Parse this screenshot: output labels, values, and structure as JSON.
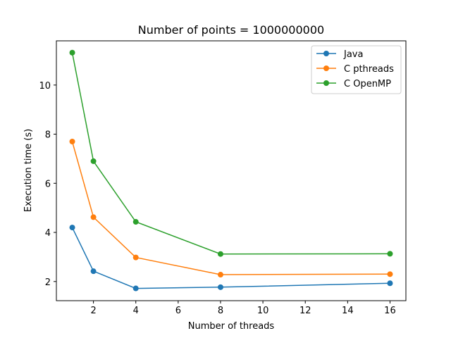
{
  "chart_data": {
    "type": "line",
    "title": "Number of points = 1000000000",
    "xlabel": "Number of threads",
    "ylabel": "Execution time (s)",
    "xlim": [
      0.25,
      16.75
    ],
    "ylim": [
      1.22,
      11.8
    ],
    "xticks": [
      2,
      4,
      6,
      8,
      10,
      12,
      14,
      16
    ],
    "yticks": [
      2,
      4,
      6,
      8,
      10
    ],
    "grid": false,
    "legend_position": "top-right",
    "x": [
      1,
      2,
      4,
      8,
      16
    ],
    "series": [
      {
        "name": "Java",
        "color": "#1f77b4",
        "values": [
          4.2,
          2.42,
          1.72,
          1.77,
          1.93
        ]
      },
      {
        "name": "C pthreads",
        "color": "#ff7f0e",
        "values": [
          7.7,
          4.62,
          2.98,
          2.28,
          2.3
        ]
      },
      {
        "name": "C OpenMP",
        "color": "#2ca02c",
        "values": [
          11.32,
          6.9,
          4.43,
          3.12,
          3.13
        ]
      }
    ]
  }
}
